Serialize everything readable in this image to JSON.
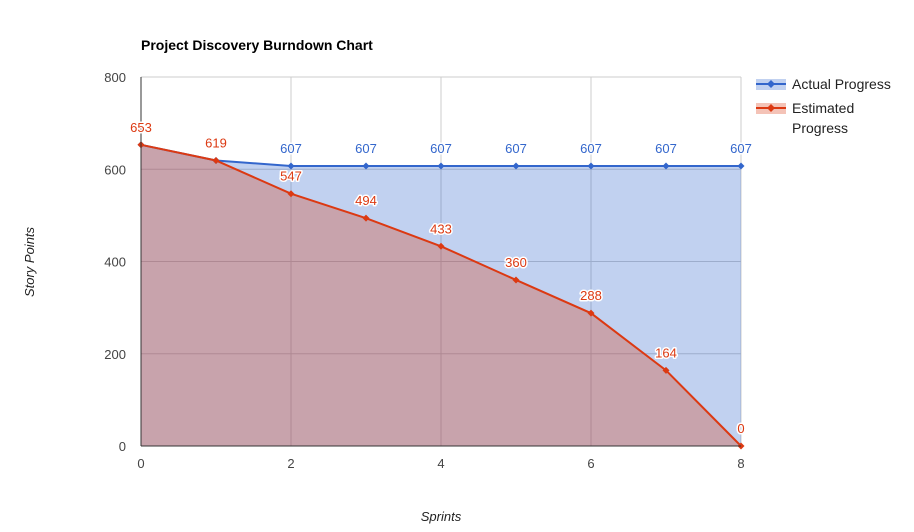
{
  "chart_data": {
    "type": "area",
    "title": "Project Discovery Burndown Chart",
    "xlabel": "Sprints",
    "ylabel": "Story Points",
    "xlim": [
      0,
      8
    ],
    "ylim": [
      0,
      800
    ],
    "xticks": [
      "0",
      "2",
      "4",
      "6",
      "8"
    ],
    "yticks": [
      "0",
      "200",
      "400",
      "600",
      "800"
    ],
    "x": [
      0,
      1,
      2,
      3,
      4,
      5,
      6,
      7,
      8
    ],
    "grid": true,
    "legend_position": "right",
    "series": [
      {
        "name": "Actual Progress",
        "color": "#3366cc",
        "values": [
          653,
          619,
          607,
          607,
          607,
          607,
          607,
          607,
          607
        ],
        "labels": [
          "",
          "",
          "607",
          "607",
          "607",
          "607",
          "607",
          "607",
          "607"
        ]
      },
      {
        "name": "Estimated Progress",
        "color": "#dc3912",
        "values": [
          653,
          619,
          547,
          494,
          433,
          360,
          288,
          164,
          0
        ],
        "labels": [
          "653",
          "619",
          "547",
          "494",
          "433",
          "360",
          "288",
          "164",
          "0"
        ]
      }
    ]
  }
}
